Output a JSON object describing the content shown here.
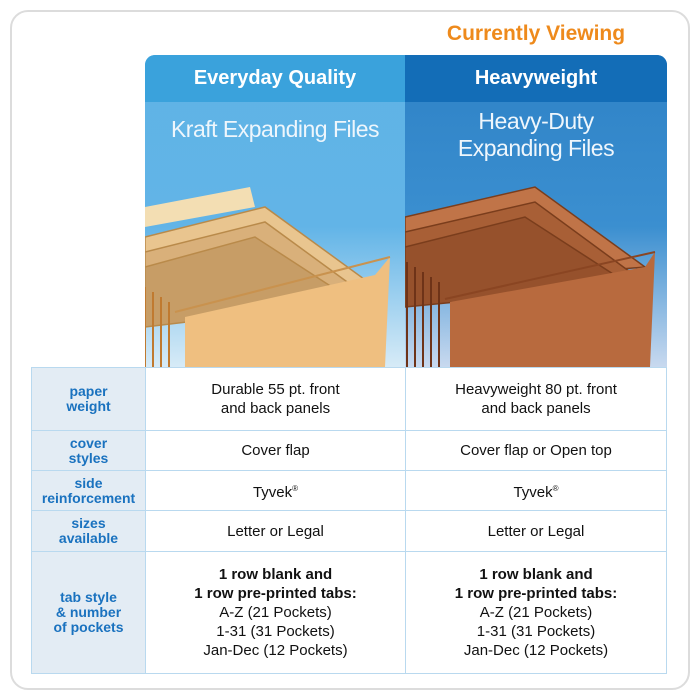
{
  "header": {
    "currently_viewing": "Currently Viewing"
  },
  "products": [
    {
      "quality": "Everyday Quality",
      "name": "Kraft Expanding Files",
      "color": "#e7b577"
    },
    {
      "quality": "Heavyweight",
      "name_line1": "Heavy-Duty",
      "name_line2": "Expanding Files",
      "color": "#b86a3e"
    }
  ],
  "rows": [
    {
      "label": [
        "paper",
        "weight"
      ],
      "v1": [
        "Durable 55 pt. front",
        "and back panels"
      ],
      "v2": [
        "Heavyweight 80 pt. front",
        "and back panels"
      ]
    },
    {
      "label": [
        "cover",
        "styles"
      ],
      "v1": "Cover flap",
      "v2": "Cover flap or Open top"
    },
    {
      "label": [
        "side",
        "reinforcement"
      ],
      "v1": "Tyvek",
      "v2": "Tyvek",
      "reg": "®"
    },
    {
      "label": [
        "sizes",
        "available"
      ],
      "v1": "Letter or Legal",
      "v2": "Letter or Legal"
    },
    {
      "label": [
        "tab style",
        "& number",
        "of pockets"
      ],
      "bold": [
        "1 row blank and",
        "1 row pre-printed tabs:"
      ],
      "items": [
        "A-Z (21 Pockets)",
        "1-31 (31 Pockets)",
        "Jan-Dec (12 Pockets)"
      ]
    }
  ]
}
